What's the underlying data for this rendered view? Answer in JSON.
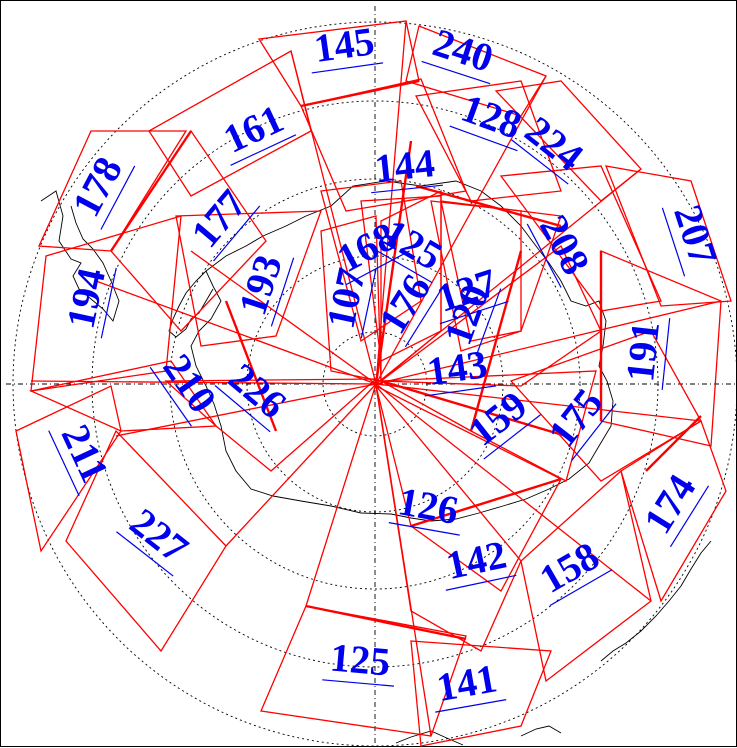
{
  "map": {
    "colors": {
      "swath": "#ff0000",
      "label": "#0000ee",
      "grid": "#000000",
      "coast": "#000000"
    },
    "track_labels": [
      "145",
      "240",
      "161",
      "128",
      "224",
      "144",
      "178",
      "177",
      "168",
      "125",
      "208",
      "207",
      "194",
      "193",
      "107",
      "176",
      "127",
      "120",
      "191",
      "143",
      "210",
      "226",
      "159",
      "175",
      "211",
      "126",
      "174",
      "227",
      "142",
      "158",
      "125",
      "141"
    ]
  }
}
